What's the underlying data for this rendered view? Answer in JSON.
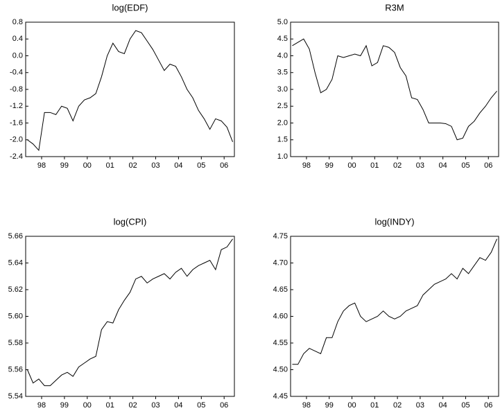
{
  "chart_data": [
    {
      "type": "line",
      "title": "log(EDF)",
      "color": "#000000",
      "x": [
        1997.875,
        1998.125,
        1998.375,
        1998.625,
        1998.875,
        1999.125,
        1999.375,
        1999.625,
        1999.875,
        2000.125,
        2000.375,
        2000.625,
        2000.875,
        2001.125,
        2001.375,
        2001.625,
        2001.875,
        2002.125,
        2002.375,
        2002.625,
        2002.875,
        2003.125,
        2003.375,
        2003.625,
        2003.875,
        2004.125,
        2004.375,
        2004.625,
        2004.875,
        2005.125,
        2005.375,
        2005.625,
        2005.875,
        2006.125,
        2006.375,
        2006.625,
        2006.875
      ],
      "series": [
        {
          "name": "log(EDF)",
          "color": "#000000",
          "values": [
            -2.0,
            -2.1,
            -2.25,
            -1.35,
            -1.35,
            -1.4,
            -1.2,
            -1.25,
            -1.55,
            -1.2,
            -1.05,
            -1.0,
            -0.9,
            -0.5,
            0.0,
            0.3,
            0.1,
            0.05,
            0.4,
            0.6,
            0.55,
            0.35,
            0.15,
            -0.1,
            -0.35,
            -0.2,
            -0.25,
            -0.5,
            -0.8,
            -1.0,
            -1.3,
            -1.5,
            -1.75,
            -1.5,
            -1.55,
            -1.7,
            -2.05
          ]
        }
      ],
      "xlim": [
        1997.8,
        2006.95
      ],
      "xticks": [
        {
          "value": 1998.5,
          "label": "98"
        },
        {
          "value": 1999.5,
          "label": "99"
        },
        {
          "value": 2000.5,
          "label": "00"
        },
        {
          "value": 2001.5,
          "label": "01"
        },
        {
          "value": 2002.5,
          "label": "02"
        },
        {
          "value": 2003.5,
          "label": "03"
        },
        {
          "value": 2004.5,
          "label": "04"
        },
        {
          "value": 2005.5,
          "label": "05"
        },
        {
          "value": 2006.5,
          "label": "06"
        }
      ],
      "ylim": [
        -2.4,
        0.8
      ],
      "yticks": [
        -2.4,
        {
          "value": -2,
          "label": "-2.0"
        },
        -1.6,
        -1.2,
        -0.8,
        -0.4,
        {
          "value": 0,
          "label": "0.0"
        },
        0.4,
        0.8
      ]
    },
    {
      "type": "line",
      "title": "R3M",
      "color": "#000000",
      "x": [
        1997.875,
        1998.125,
        1998.375,
        1998.625,
        1998.875,
        1999.125,
        1999.375,
        1999.625,
        1999.875,
        2000.125,
        2000.375,
        2000.625,
        2000.875,
        2001.125,
        2001.375,
        2001.625,
        2001.875,
        2002.125,
        2002.375,
        2002.625,
        2002.875,
        2003.125,
        2003.375,
        2003.625,
        2003.875,
        2004.125,
        2004.375,
        2004.625,
        2004.875,
        2005.125,
        2005.375,
        2005.625,
        2005.875,
        2006.125,
        2006.375,
        2006.625,
        2006.875
      ],
      "series": [
        {
          "name": "R3M",
          "color": "#000000",
          "values": [
            4.3,
            4.4,
            4.5,
            4.2,
            3.5,
            2.9,
            3.0,
            3.3,
            4.0,
            3.95,
            4.0,
            4.05,
            4.0,
            4.3,
            3.7,
            3.8,
            4.3,
            4.25,
            4.1,
            3.65,
            3.4,
            2.75,
            2.7,
            2.4,
            2.0,
            2.0,
            2.0,
            1.98,
            1.9,
            1.5,
            1.55,
            1.9,
            2.05,
            2.3,
            2.5,
            2.75,
            2.95
          ]
        }
      ],
      "xlim": [
        1997.8,
        2006.95
      ],
      "xticks": [
        {
          "value": 1998.5,
          "label": "98"
        },
        {
          "value": 1999.5,
          "label": "99"
        },
        {
          "value": 2000.5,
          "label": "00"
        },
        {
          "value": 2001.5,
          "label": "01"
        },
        {
          "value": 2002.5,
          "label": "02"
        },
        {
          "value": 2003.5,
          "label": "03"
        },
        {
          "value": 2004.5,
          "label": "04"
        },
        {
          "value": 2005.5,
          "label": "05"
        },
        {
          "value": 2006.5,
          "label": "06"
        }
      ],
      "ylim": [
        1.0,
        5.0
      ],
      "yticks": [
        {
          "value": 1,
          "label": "1.0"
        },
        1.5,
        {
          "value": 2,
          "label": "2.0"
        },
        2.5,
        {
          "value": 3,
          "label": "3.0"
        },
        3.5,
        {
          "value": 4,
          "label": "4.0"
        },
        4.5,
        {
          "value": 5,
          "label": "5.0"
        }
      ]
    },
    {
      "type": "line",
      "title": "log(CPI)",
      "color": "#000000",
      "x": [
        1997.875,
        1998.125,
        1998.375,
        1998.625,
        1998.875,
        1999.125,
        1999.375,
        1999.625,
        1999.875,
        2000.125,
        2000.375,
        2000.625,
        2000.875,
        2001.125,
        2001.375,
        2001.625,
        2001.875,
        2002.125,
        2002.375,
        2002.625,
        2002.875,
        2003.125,
        2003.375,
        2003.625,
        2003.875,
        2004.125,
        2004.375,
        2004.625,
        2004.875,
        2005.125,
        2005.375,
        2005.625,
        2005.875,
        2006.125,
        2006.375,
        2006.625,
        2006.875
      ],
      "series": [
        {
          "name": "log(CPI)",
          "color": "#000000",
          "values": [
            5.56,
            5.55,
            5.553,
            5.548,
            5.548,
            5.552,
            5.556,
            5.558,
            5.555,
            5.562,
            5.565,
            5.568,
            5.57,
            5.59,
            5.596,
            5.595,
            5.605,
            5.612,
            5.618,
            5.628,
            5.63,
            5.625,
            5.628,
            5.63,
            5.632,
            5.628,
            5.633,
            5.636,
            5.63,
            5.635,
            5.638,
            5.64,
            5.642,
            5.635,
            5.65,
            5.652,
            5.658
          ]
        }
      ],
      "xlim": [
        1997.8,
        2006.95
      ],
      "xticks": [
        {
          "value": 1998.5,
          "label": "98"
        },
        {
          "value": 1999.5,
          "label": "99"
        },
        {
          "value": 2000.5,
          "label": "00"
        },
        {
          "value": 2001.5,
          "label": "01"
        },
        {
          "value": 2002.5,
          "label": "02"
        },
        {
          "value": 2003.5,
          "label": "03"
        },
        {
          "value": 2004.5,
          "label": "04"
        },
        {
          "value": 2005.5,
          "label": "05"
        },
        {
          "value": 2006.5,
          "label": "06"
        }
      ],
      "ylim": [
        5.54,
        5.66
      ],
      "yticks": [
        5.54,
        5.56,
        5.58,
        {
          "value": 5.6,
          "label": "5.60"
        },
        5.62,
        5.64,
        5.66
      ]
    },
    {
      "type": "line",
      "title": "log(INDY)",
      "color": "#000000",
      "x": [
        1997.875,
        1998.125,
        1998.375,
        1998.625,
        1998.875,
        1999.125,
        1999.375,
        1999.625,
        1999.875,
        2000.125,
        2000.375,
        2000.625,
        2000.875,
        2001.125,
        2001.375,
        2001.625,
        2001.875,
        2002.125,
        2002.375,
        2002.625,
        2002.875,
        2003.125,
        2003.375,
        2003.625,
        2003.875,
        2004.125,
        2004.375,
        2004.625,
        2004.875,
        2005.125,
        2005.375,
        2005.625,
        2005.875,
        2006.125,
        2006.375,
        2006.625,
        2006.875
      ],
      "series": [
        {
          "name": "log(INDY)",
          "color": "#000000",
          "values": [
            4.51,
            4.51,
            4.53,
            4.54,
            4.535,
            4.53,
            4.56,
            4.56,
            4.59,
            4.61,
            4.62,
            4.625,
            4.6,
            4.59,
            4.595,
            4.6,
            4.61,
            4.6,
            4.595,
            4.6,
            4.61,
            4.615,
            4.62,
            4.64,
            4.65,
            4.66,
            4.665,
            4.67,
            4.68,
            4.67,
            4.69,
            4.68,
            4.695,
            4.71,
            4.705,
            4.72,
            4.745
          ]
        }
      ],
      "xlim": [
        1997.8,
        2006.95
      ],
      "xticks": [
        {
          "value": 1998.5,
          "label": "98"
        },
        {
          "value": 1999.5,
          "label": "99"
        },
        {
          "value": 2000.5,
          "label": "00"
        },
        {
          "value": 2001.5,
          "label": "01"
        },
        {
          "value": 2002.5,
          "label": "02"
        },
        {
          "value": 2003.5,
          "label": "03"
        },
        {
          "value": 2004.5,
          "label": "04"
        },
        {
          "value": 2005.5,
          "label": "05"
        },
        {
          "value": 2006.5,
          "label": "06"
        }
      ],
      "ylim": [
        4.45,
        4.75
      ],
      "yticks": [
        4.45,
        {
          "value": 4.5,
          "label": "4.50"
        },
        4.55,
        {
          "value": 4.6,
          "label": "4.60"
        },
        4.65,
        {
          "value": 4.7,
          "label": "4.70"
        },
        4.75
      ]
    }
  ]
}
